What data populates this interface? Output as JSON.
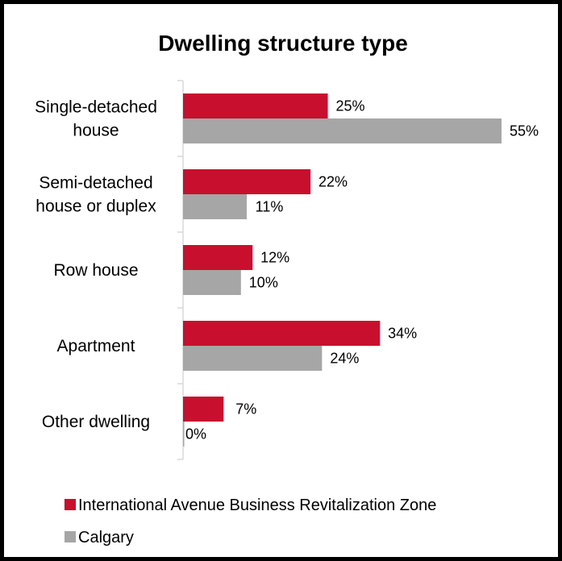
{
  "chart_data": {
    "type": "bar",
    "orientation": "horizontal",
    "title": "Dwelling structure type",
    "categories": [
      [
        "Single-detached",
        "house"
      ],
      [
        "Semi-detached",
        "house or duplex"
      ],
      [
        "Row house"
      ],
      [
        "Apartment"
      ],
      [
        "Other dwelling"
      ]
    ],
    "series": [
      {
        "name": "International Avenue Business Revitalization Zone",
        "color": "#c8102e",
        "values": [
          25,
          22,
          12,
          34,
          7
        ],
        "labels": [
          "25%",
          "22%",
          "12%",
          "34%",
          "7%"
        ]
      },
      {
        "name": "Calgary",
        "color": "#a6a6a6",
        "values": [
          55,
          11,
          10,
          24,
          0
        ],
        "labels": [
          "55%",
          "11%",
          "10%",
          "24%",
          "0%"
        ]
      }
    ],
    "xlim": [
      0,
      55
    ],
    "value_unit": "%",
    "grid": false,
    "legend_position": "bottom-left"
  }
}
